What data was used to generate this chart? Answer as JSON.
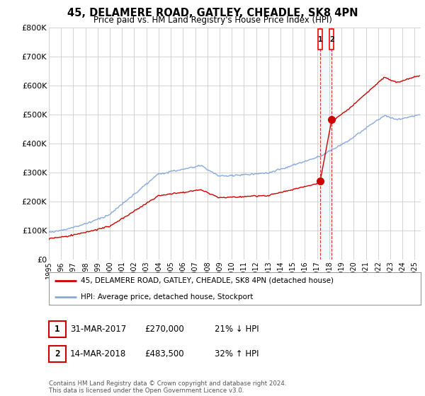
{
  "title": "45, DELAMERE ROAD, GATLEY, CHEADLE, SK8 4PN",
  "subtitle": "Price paid vs. HM Land Registry's House Price Index (HPI)",
  "ylim": [
    0,
    800000
  ],
  "xlim_start": 1995.0,
  "xlim_end": 2025.5,
  "sale1_date": 2017.25,
  "sale1_price": 270000,
  "sale1_label": "31-MAR-2017",
  "sale1_pct": "21% ↓ HPI",
  "sale2_date": 2018.2,
  "sale2_price": 483500,
  "sale2_label": "14-MAR-2018",
  "sale2_pct": "32% ↑ HPI",
  "legend_property": "45, DELAMERE ROAD, GATLEY, CHEADLE, SK8 4PN (detached house)",
  "legend_hpi": "HPI: Average price, detached house, Stockport",
  "footnote": "Contains HM Land Registry data © Crown copyright and database right 2024.\nThis data is licensed under the Open Government Licence v3.0.",
  "property_color": "#cc0000",
  "hpi_color": "#88aadd",
  "background_color": "#ffffff",
  "grid_color": "#cccccc",
  "yticks": [
    0,
    100000,
    200000,
    300000,
    400000,
    500000,
    600000,
    700000,
    800000
  ],
  "ytick_labels": [
    "£0",
    "£100K",
    "£200K",
    "£300K",
    "£400K",
    "£500K",
    "£600K",
    "£700K",
    "£800K"
  ],
  "xticks": [
    1995,
    1996,
    1997,
    1998,
    1999,
    2000,
    2001,
    2002,
    2003,
    2004,
    2005,
    2006,
    2007,
    2008,
    2009,
    2010,
    2011,
    2012,
    2013,
    2014,
    2015,
    2016,
    2017,
    2018,
    2019,
    2020,
    2021,
    2022,
    2023,
    2024,
    2025
  ]
}
